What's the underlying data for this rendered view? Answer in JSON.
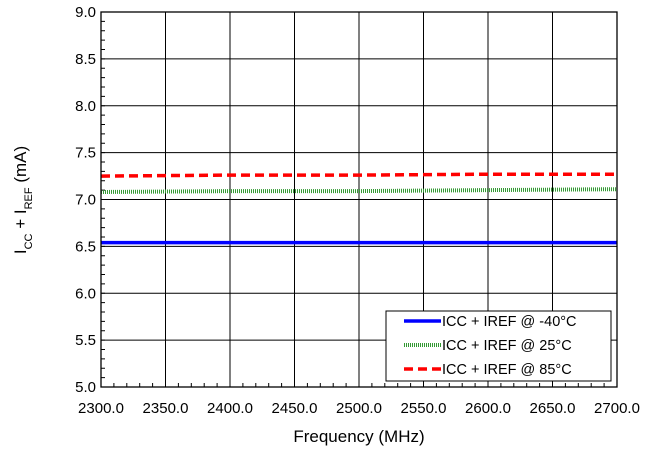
{
  "chart_data": {
    "type": "line",
    "xlabel": "Frequency (MHz)",
    "ylabel": {
      "parts": [
        {
          "text": "I",
          "sub": false
        },
        {
          "text": "CC",
          "sub": true
        },
        {
          "text": " + I",
          "sub": false
        },
        {
          "text": "REF",
          "sub": true
        },
        {
          "text": " (mA)",
          "sub": false
        }
      ]
    },
    "xlim": [
      2300,
      2700
    ],
    "ylim": [
      5.0,
      9.0
    ],
    "x_ticks": [
      "2300.0",
      "2350.0",
      "2400.0",
      "2450.0",
      "2500.0",
      "2550.0",
      "2600.0",
      "2650.0",
      "2700.0"
    ],
    "y_ticks": [
      "5.0",
      "5.5",
      "6.0",
      "6.5",
      "7.0",
      "7.5",
      "8.0",
      "8.5",
      "9.0"
    ],
    "grid": true,
    "legend_position": "bottom-right",
    "series": [
      {
        "name": "ICC + IREF @ -40°C",
        "color": "#0000ff",
        "style": "solid",
        "x": [
          2300,
          2400,
          2500,
          2600,
          2700
        ],
        "y": [
          6.54,
          6.54,
          6.54,
          6.54,
          6.54
        ]
      },
      {
        "name": "ICC + IREF @ 25°C",
        "color": "#339933",
        "style": "dotted",
        "x": [
          2300,
          2400,
          2500,
          2600,
          2700
        ],
        "y": [
          7.08,
          7.09,
          7.09,
          7.1,
          7.11
        ]
      },
      {
        "name": "ICC + IREF @ 85°C",
        "color": "#ff0000",
        "style": "dashed",
        "x": [
          2300,
          2400,
          2500,
          2600,
          2700
        ],
        "y": [
          7.25,
          7.26,
          7.26,
          7.27,
          7.27
        ]
      }
    ]
  }
}
